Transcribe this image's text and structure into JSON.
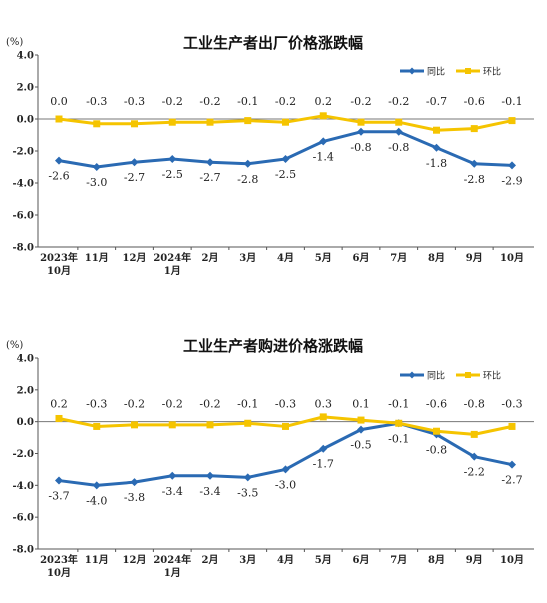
{
  "chart_data": [
    {
      "type": "line",
      "title": "工业生产者出厂价格涨跌幅",
      "unit": "(%)",
      "categories": [
        [
          "2023年",
          "10月"
        ],
        [
          "11月"
        ],
        [
          "12月"
        ],
        [
          "2024年",
          "1月"
        ],
        [
          "2月"
        ],
        [
          "3月"
        ],
        [
          "4月"
        ],
        [
          "5月"
        ],
        [
          "6月"
        ],
        [
          "7月"
        ],
        [
          "8月"
        ],
        [
          "9月"
        ],
        [
          "10月"
        ]
      ],
      "ylim": [
        -8.0,
        4.0
      ],
      "yticks": [
        "4.0",
        "2.0",
        "0.0",
        "-2.0",
        "-4.0",
        "-6.0",
        "-8.0"
      ],
      "grid": false,
      "legend_position": "top-right",
      "series": [
        {
          "name": "同比",
          "color": "#2a6ab3",
          "marker": "diamond",
          "values": [
            -2.6,
            -3.0,
            -2.7,
            -2.5,
            -2.7,
            -2.8,
            -2.5,
            -1.4,
            -0.8,
            -0.8,
            -1.8,
            -2.8,
            -2.9
          ],
          "labels": [
            "-2.6",
            "-3.0",
            "-2.7",
            "-2.5",
            "-2.7",
            "-2.8",
            "-2.5",
            "-1.4",
            "-0.8",
            "-0.8",
            "-1.8",
            "-2.8",
            "-2.9"
          ]
        },
        {
          "name": "环比",
          "color": "#f5c400",
          "marker": "square",
          "values": [
            0.0,
            -0.3,
            -0.3,
            -0.2,
            -0.2,
            -0.1,
            -0.2,
            0.2,
            -0.2,
            -0.2,
            -0.7,
            -0.6,
            -0.1
          ],
          "labels": [
            "0.0",
            "-0.3",
            "-0.3",
            "-0.2",
            "-0.2",
            "-0.1",
            "-0.2",
            "0.2",
            "-0.2",
            "-0.2",
            "-0.7",
            "-0.6",
            "-0.1"
          ]
        }
      ]
    },
    {
      "type": "line",
      "title": "工业生产者购进价格涨跌幅",
      "unit": "(%)",
      "categories": [
        [
          "2023年",
          "10月"
        ],
        [
          "11月"
        ],
        [
          "12月"
        ],
        [
          "2024年",
          "1月"
        ],
        [
          "2月"
        ],
        [
          "3月"
        ],
        [
          "4月"
        ],
        [
          "5月"
        ],
        [
          "6月"
        ],
        [
          "7月"
        ],
        [
          "8月"
        ],
        [
          "9月"
        ],
        [
          "10月"
        ]
      ],
      "ylim": [
        -8.0,
        4.0
      ],
      "yticks": [
        "4.0",
        "2.0",
        "0.0",
        "-2.0",
        "-4.0",
        "-6.0",
        "-8.0"
      ],
      "grid": false,
      "legend_position": "top-right",
      "series": [
        {
          "name": "同比",
          "color": "#2a6ab3",
          "marker": "diamond",
          "values": [
            -3.7,
            -4.0,
            -3.8,
            -3.4,
            -3.4,
            -3.5,
            -3.0,
            -1.7,
            -0.5,
            -0.1,
            -0.8,
            -2.2,
            -2.7
          ],
          "labels": [
            "-3.7",
            "-4.0",
            "-3.8",
            "-3.4",
            "-3.4",
            "-3.5",
            "-3.0",
            "-1.7",
            "-0.5",
            "-0.1",
            "-0.8",
            "-2.2",
            "-2.7"
          ]
        },
        {
          "name": "环比",
          "color": "#f5c400",
          "marker": "square",
          "values": [
            0.2,
            -0.3,
            -0.2,
            -0.2,
            -0.2,
            -0.1,
            -0.3,
            0.3,
            0.1,
            -0.1,
            -0.6,
            -0.8,
            -0.3
          ],
          "labels": [
            "0.2",
            "-0.3",
            "-0.2",
            "-0.2",
            "-0.2",
            "-0.1",
            "-0.3",
            "0.3",
            "0.1",
            "-0.1",
            "-0.6",
            "-0.8",
            "-0.3"
          ]
        }
      ]
    }
  ]
}
